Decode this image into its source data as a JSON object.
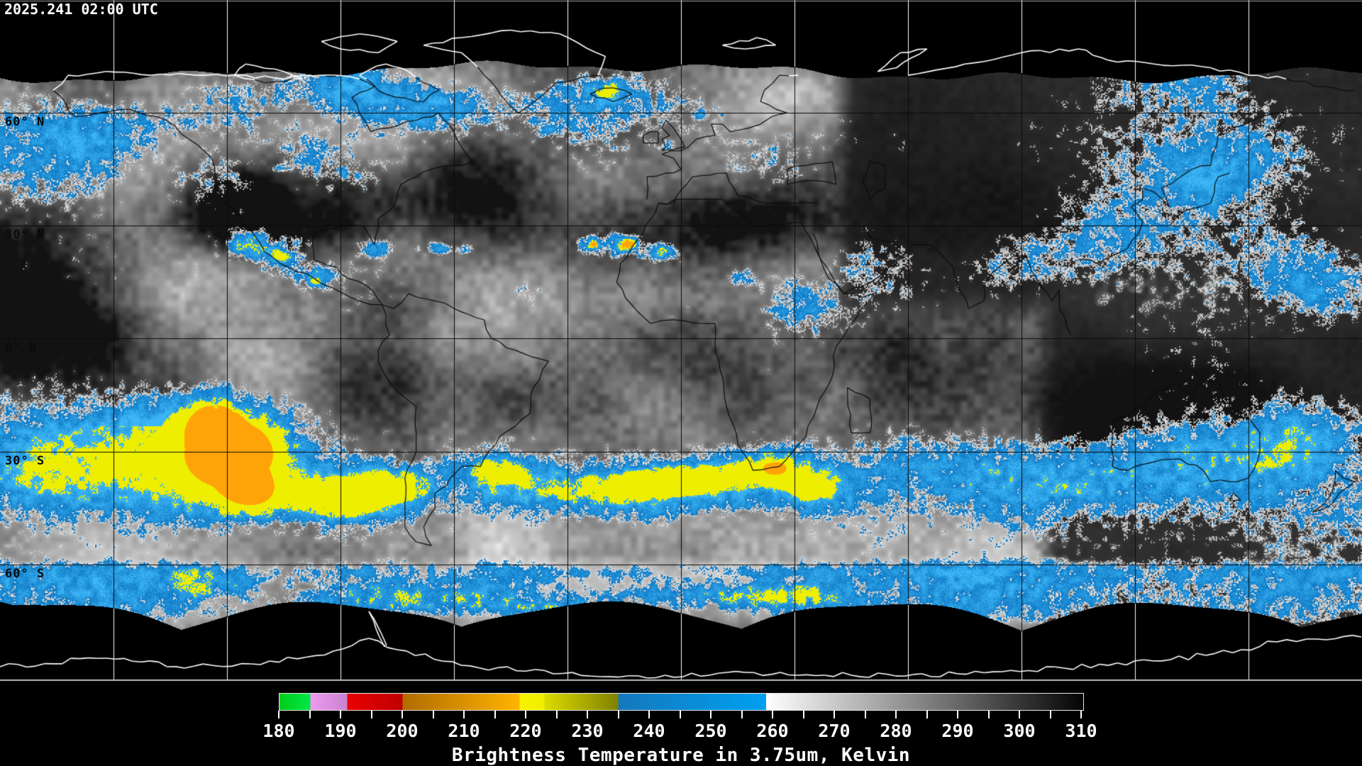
{
  "timestamp": "2025.241 02:00 UTC",
  "map": {
    "graticule": {
      "lon_step_deg": 30,
      "lat_step_deg": 30
    },
    "latitude_labels": [
      {
        "lat_deg": 60,
        "label": "60° N"
      },
      {
        "lat_deg": 30,
        "label": "30° N"
      },
      {
        "lat_deg": 0,
        "label": "0° N"
      },
      {
        "lat_deg": -30,
        "label": "30° S"
      },
      {
        "lat_deg": -60,
        "label": "60° S"
      }
    ],
    "overlay_colors": {
      "cold_cloud_blue": "#2196d8",
      "colder_cloud_yellow": "#eeee00",
      "coldest_cloud_orange": "#ffa408",
      "coastline_on_data": "#0b0b0b",
      "coastline_on_void": "#ffffff",
      "gridline_on_data": "#0a0a0a",
      "gridline_on_void": "#ffffff",
      "no_data_background": "#000000"
    }
  },
  "legend": {
    "title": "Brightness Temperature in 3.75um, Kelvin",
    "range_kelvin": [
      180,
      310
    ],
    "minor_tick_step_kelvin": 5,
    "major_tick_labels": [
      "180",
      "190",
      "200",
      "210",
      "220",
      "230",
      "240",
      "250",
      "260",
      "270",
      "280",
      "290",
      "300",
      "310"
    ],
    "tick_color": "#ffffff",
    "label_color": "#ffffff",
    "segments": [
      {
        "from_k": 180,
        "to_k": 185,
        "from_color": "#00cc1a",
        "to_color": "#00e846"
      },
      {
        "from_k": 185,
        "to_k": 191,
        "from_color": "#ee9aee",
        "to_color": "#c883d0"
      },
      {
        "from_k": 191,
        "to_k": 200,
        "from_color": "#e80000",
        "to_color": "#c00000"
      },
      {
        "from_k": 200,
        "to_k": 219,
        "from_color": "#b06c00",
        "to_color": "#ffb400"
      },
      {
        "from_k": 219,
        "to_k": 223,
        "from_color": "#f8f200",
        "to_color": "#f0ee00"
      },
      {
        "from_k": 223,
        "to_k": 235,
        "from_color": "#dcdc00",
        "to_color": "#808000"
      },
      {
        "from_k": 235,
        "to_k": 259,
        "from_color": "#1478bc",
        "to_color": "#00a0f0"
      },
      {
        "from_k": 259,
        "to_k": 310,
        "from_color": "#ffffff",
        "to_color": "#060606"
      }
    ]
  }
}
